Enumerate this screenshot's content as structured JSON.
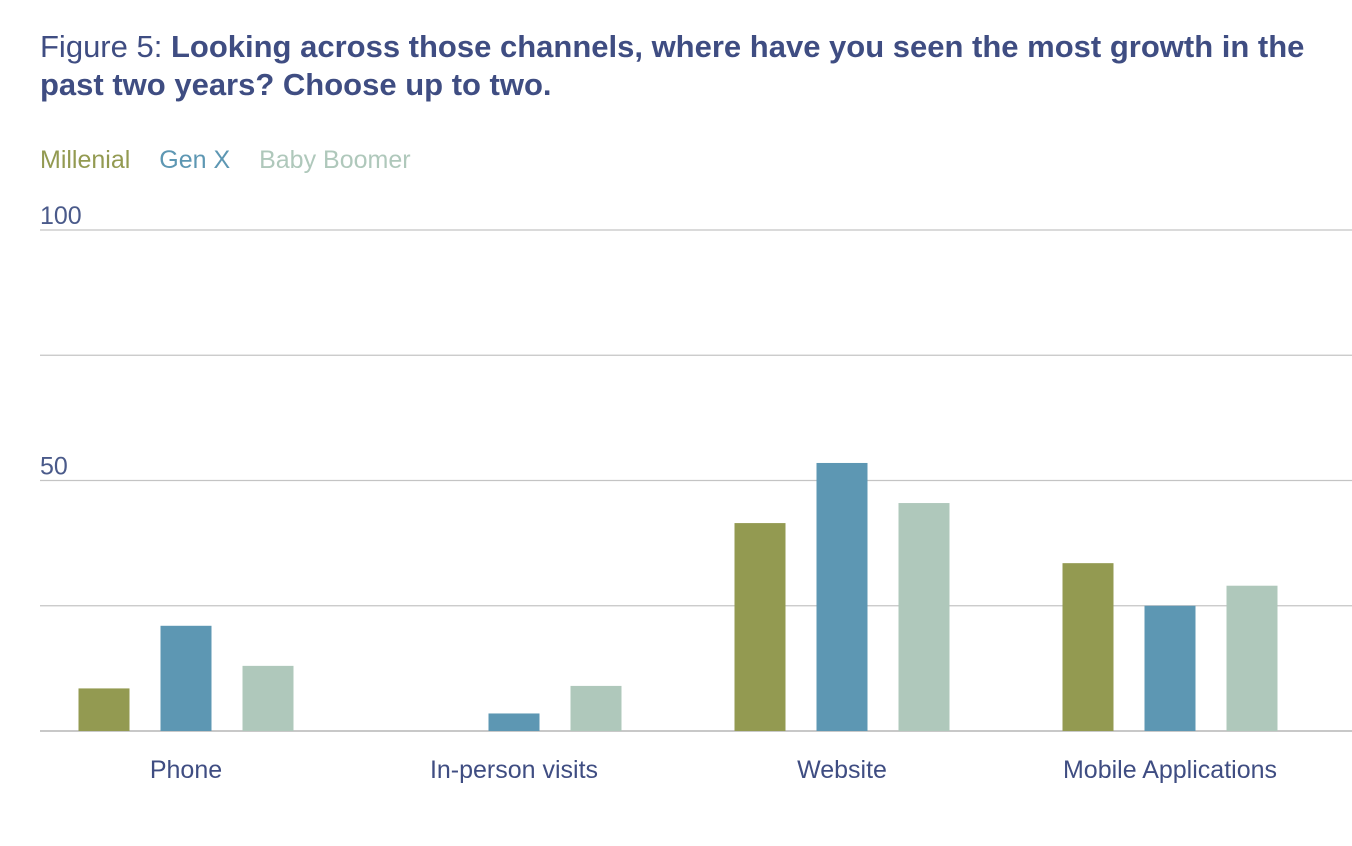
{
  "chart_data": {
    "type": "bar",
    "title_prefix": "Figure 5: ",
    "title": "Looking across those channels, where have you seen the most growth in the past two years? Choose up to two.",
    "categories": [
      "Phone",
      "In-person visits",
      "Website",
      "Mobile Applications"
    ],
    "series": [
      {
        "name": "Millenial",
        "color": "#939a51",
        "values": [
          8.5,
          0,
          41.5,
          33.5
        ]
      },
      {
        "name": "Gen X",
        "color": "#5d97b3",
        "values": [
          21,
          3.5,
          53.5,
          25
        ]
      },
      {
        "name": "Baby Boomer",
        "color": "#afc8bb",
        "values": [
          13,
          9,
          45.5,
          29
        ]
      }
    ],
    "ylim": [
      0,
      100
    ],
    "y_ticks": [
      0,
      25,
      50,
      75,
      100
    ],
    "y_tick_labels": [
      "",
      "",
      "50",
      "",
      "100"
    ],
    "grid": true,
    "legend_position": "top-left"
  }
}
